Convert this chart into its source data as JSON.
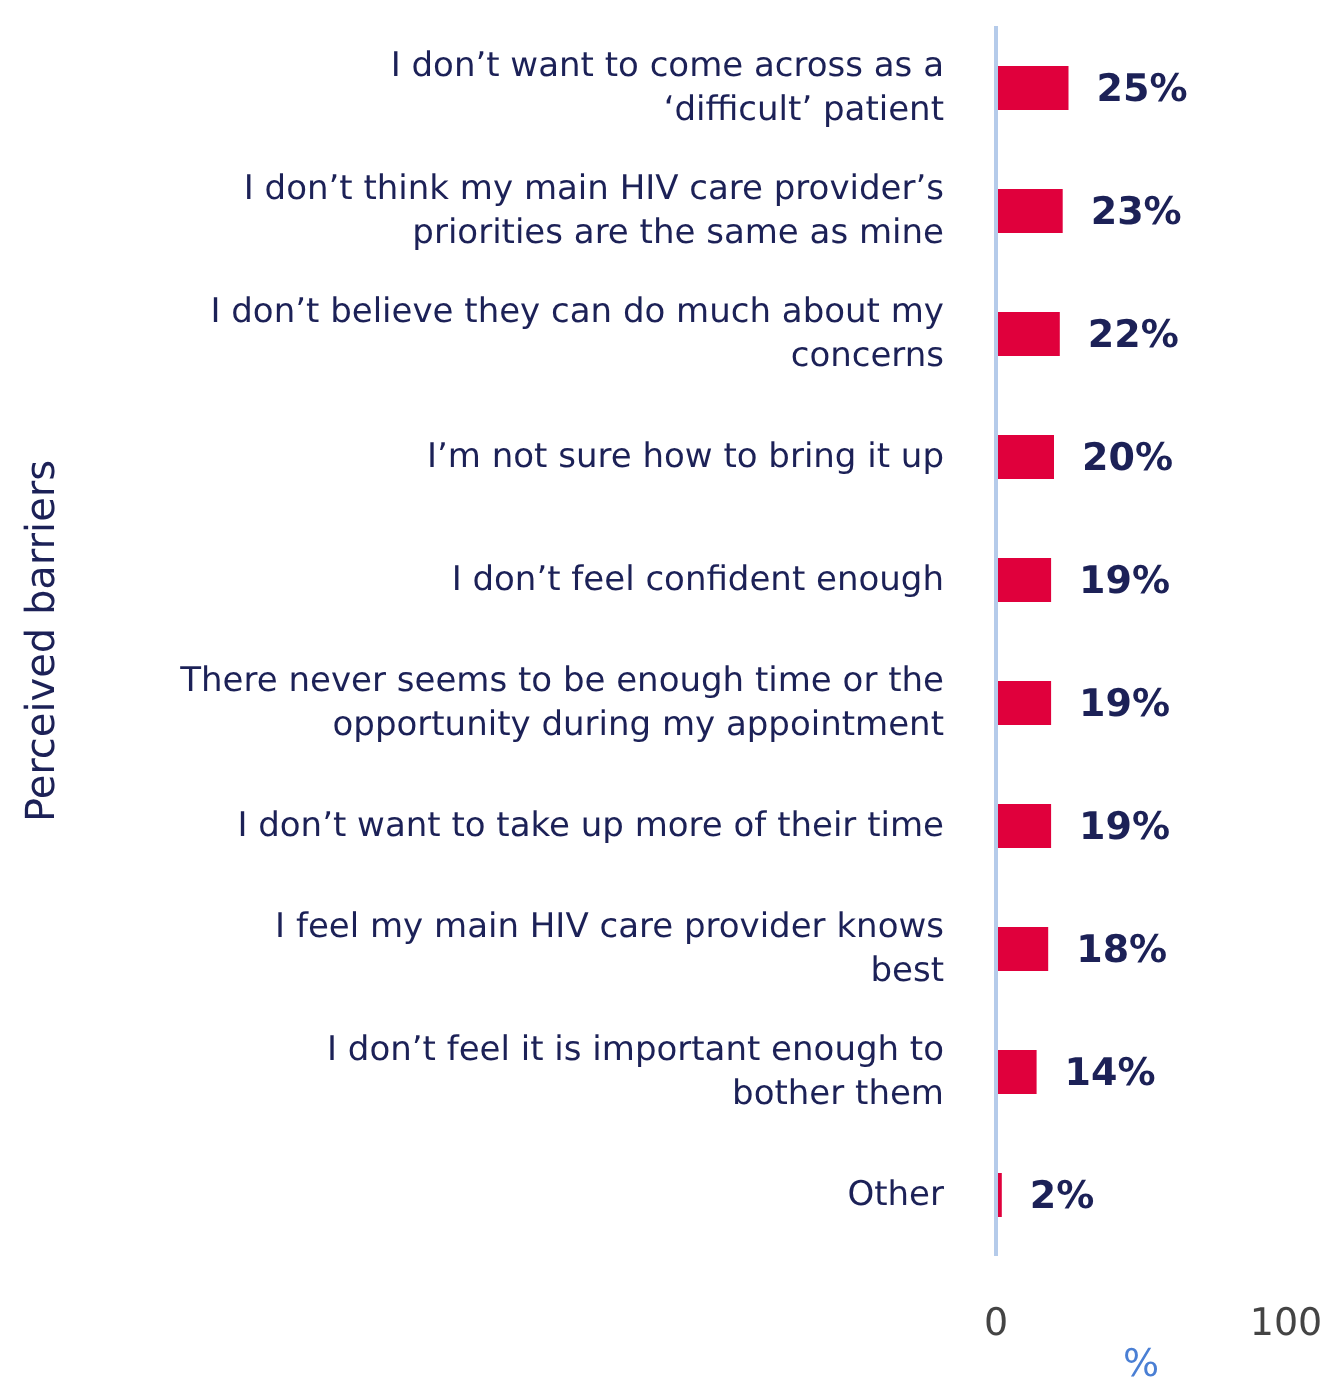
{
  "chart_data": {
    "type": "bar",
    "orientation": "horizontal",
    "ylabel": "Perceived barriers",
    "xlabel": "%",
    "categories": [
      "I don’t want to come across as a ‘difficult’ patient",
      "I don’t think my main HIV care provider’s priorities are the same as mine",
      "I don’t believe they can do much about my concerns",
      "I’m not sure how to bring it up",
      "I don’t feel confident enough",
      "There never seems to be enough time or the opportunity during my appointment",
      "I don’t want to take up more of their time",
      "I feel my main HIV care provider knows best",
      "I don’t feel it is important enough to bother them",
      "Other"
    ],
    "values": [
      25,
      23,
      22,
      20,
      19,
      19,
      19,
      18,
      14,
      2
    ],
    "value_labels": [
      "25%",
      "23%",
      "22%",
      "20%",
      "19%",
      "19%",
      "19%",
      "18%",
      "14%",
      "2%"
    ],
    "color": "#e0003c",
    "xlim": [
      0,
      100
    ],
    "xticks": [
      0,
      100
    ],
    "grid": false,
    "legend": false
  }
}
